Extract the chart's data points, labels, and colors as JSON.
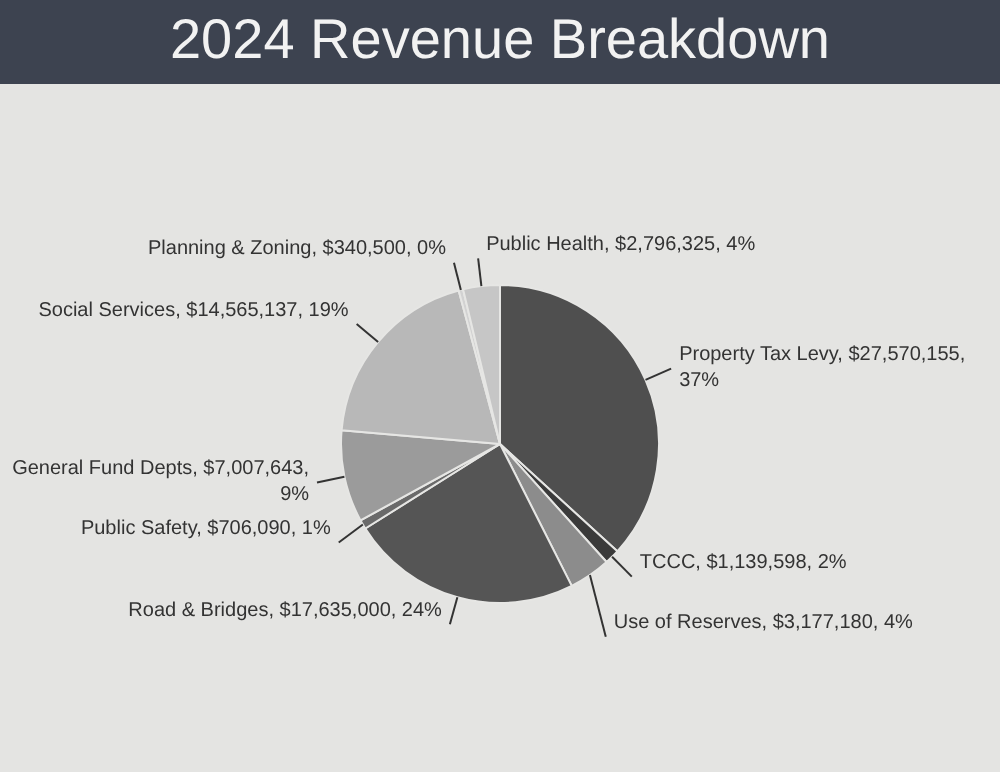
{
  "chart_data": {
    "type": "pie",
    "title": "2024 Revenue Breakdown",
    "categories": [
      "Property Tax Levy",
      "TCCC",
      "Use of Reserves",
      "Road & Bridges",
      "Public Safety",
      "General Fund Depts",
      "Social Services",
      "Planning & Zoning",
      "Public Health"
    ],
    "values": [
      27570155,
      1139598,
      3177180,
      17635000,
      706090,
      7007643,
      14565137,
      340500,
      2796325
    ],
    "value_labels": [
      "$27,570,155, 37%",
      "$1,139,598, 2%",
      "$3,177,180, 4%",
      "$17,635,000, 24%",
      "$706,090, 1%",
      "$7,007,643, 9%",
      "$14,565,137, 19%",
      "$340,500, 0%",
      "$2,796,325, 4%"
    ],
    "colors": [
      "#4f4f4f",
      "#3a3a3a",
      "#8c8c8c",
      "#555555",
      "#6a6a6a",
      "#9b9b9b",
      "#b8b8b8",
      "#d2d2d2",
      "#c6c6c6"
    ],
    "legend": false
  }
}
